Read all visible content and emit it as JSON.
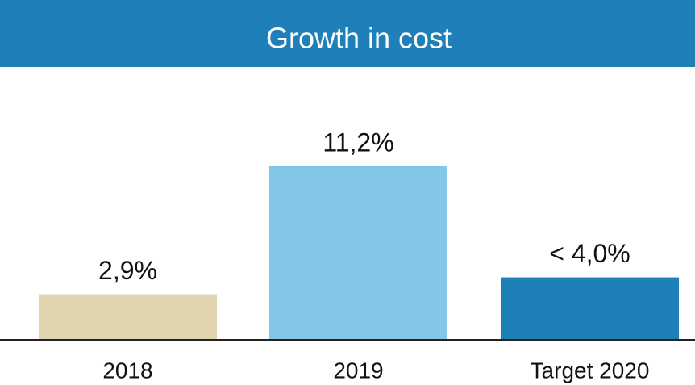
{
  "chart_data": {
    "type": "bar",
    "title": "Growth in cost",
    "categories": [
      "2018",
      "2019",
      "Target 2020"
    ],
    "values": [
      2.9,
      11.2,
      4.0
    ],
    "value_labels": [
      "2,9%",
      "11,2%",
      "< 4,0%"
    ],
    "colors": [
      "#e0d4ae",
      "#83c6e8",
      "#1f80b9"
    ],
    "title_color": "#1f80b9"
  }
}
